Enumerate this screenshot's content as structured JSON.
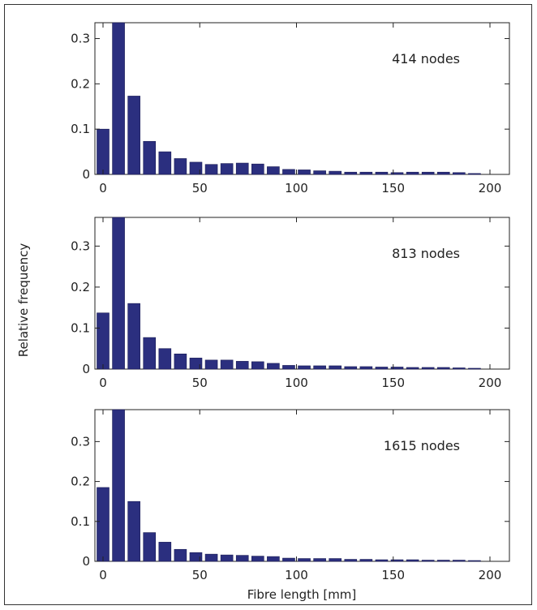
{
  "colors": {
    "bar": "#2b2f7f",
    "bar_edge": "#1a1c55",
    "axis": "#222222",
    "frame": "#333333"
  },
  "chart_data": {
    "type": "bar",
    "xlabel": "Fibre length [mm]",
    "ylabel": "Relative frequency",
    "xlim": [
      0,
      200
    ],
    "bin_width": 8,
    "x_centers": [
      0,
      8,
      16,
      24,
      32,
      40,
      48,
      56,
      64,
      72,
      80,
      88,
      96,
      104,
      112,
      120,
      128,
      136,
      144,
      152,
      160,
      168,
      176,
      184,
      192
    ],
    "xticks": [
      "0",
      "50",
      "100",
      "150",
      "200"
    ],
    "panels": [
      {
        "label": "414  nodes",
        "ylim": [
          0,
          0.335
        ],
        "yticks": [
          "0",
          "0.1",
          "0.2",
          "0.3"
        ],
        "values": [
          0.1,
          0.335,
          0.173,
          0.073,
          0.05,
          0.035,
          0.027,
          0.022,
          0.024,
          0.025,
          0.023,
          0.017,
          0.011,
          0.01,
          0.008,
          0.007,
          0.005,
          0.005,
          0.005,
          0.004,
          0.005,
          0.005,
          0.005,
          0.004,
          0.002
        ]
      },
      {
        "label": "813  nodes",
        "ylim": [
          0,
          0.37
        ],
        "yticks": [
          "0",
          "0.1",
          "0.2",
          "0.3"
        ],
        "values": [
          0.137,
          0.37,
          0.16,
          0.077,
          0.05,
          0.037,
          0.027,
          0.022,
          0.022,
          0.019,
          0.018,
          0.014,
          0.009,
          0.008,
          0.008,
          0.008,
          0.006,
          0.006,
          0.005,
          0.005,
          0.004,
          0.004,
          0.004,
          0.003,
          0.002
        ]
      },
      {
        "label": "1615  nodes",
        "ylim": [
          0,
          0.38
        ],
        "yticks": [
          "0",
          "0.1",
          "0.2",
          "0.3"
        ],
        "values": [
          0.185,
          0.38,
          0.15,
          0.072,
          0.048,
          0.03,
          0.022,
          0.018,
          0.016,
          0.015,
          0.013,
          0.012,
          0.008,
          0.007,
          0.007,
          0.007,
          0.005,
          0.005,
          0.004,
          0.004,
          0.004,
          0.003,
          0.003,
          0.003,
          0.002
        ]
      }
    ]
  }
}
